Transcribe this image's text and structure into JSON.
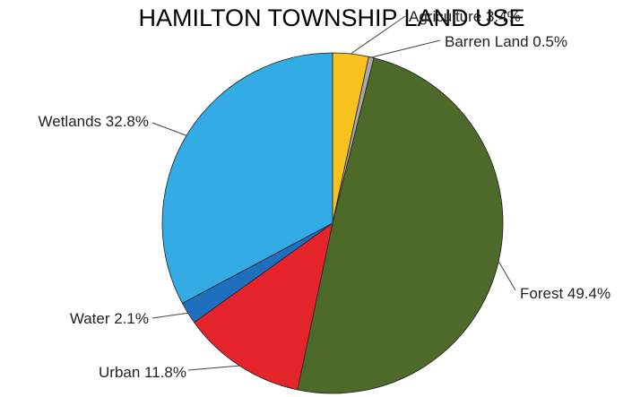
{
  "chart_data": {
    "type": "pie",
    "title": "HAMILTON TOWNSHIP LAND USE",
    "slices": [
      {
        "name": "Agriculture",
        "value": 3.4,
        "label": "Agriculture 3.4%",
        "color": "#F7C21C"
      },
      {
        "name": "Barren Land",
        "value": 0.5,
        "label": "Barren Land 0.5%",
        "color": "#A8A8A8"
      },
      {
        "name": "Forest",
        "value": 49.4,
        "label": "Forest 49.4%",
        "color": "#4D6A2A"
      },
      {
        "name": "Urban",
        "value": 11.8,
        "label": "Urban 11.8%",
        "color": "#E4232B"
      },
      {
        "name": "Water",
        "value": 2.1,
        "label": "Water 2.1%",
        "color": "#1F6FBF"
      },
      {
        "name": "Wetlands",
        "value": 32.8,
        "label": "Wetlands 32.8%",
        "color": "#33ACE6"
      }
    ],
    "start_angle": "12 o'clock",
    "direction": "clockwise",
    "legend": "none"
  }
}
